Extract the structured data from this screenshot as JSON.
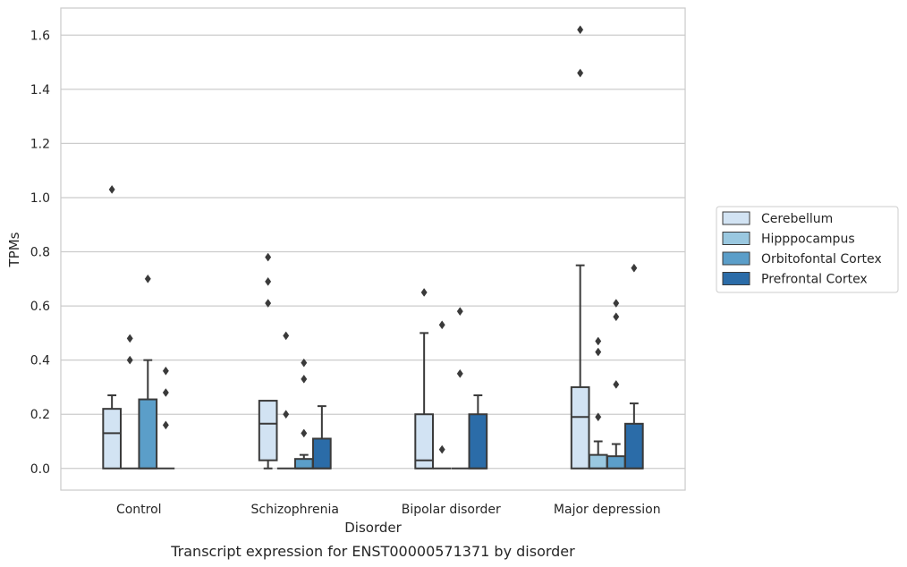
{
  "chart_data": {
    "type": "box",
    "title": "",
    "caption": "Transcript expression for ENST00000571371 by disorder",
    "xlabel": "Disorder",
    "ylabel": "TPMs",
    "ylim": [
      -0.08,
      1.7
    ],
    "yticks": [
      0.0,
      0.2,
      0.4,
      0.6,
      0.8,
      1.0,
      1.2,
      1.4,
      1.6
    ],
    "ytick_labels": [
      "0.0",
      "0.2",
      "0.4",
      "0.6",
      "0.8",
      "1.0",
      "1.2",
      "1.4",
      "1.6"
    ],
    "grid": "horizontal",
    "legend_position": "right",
    "categories": [
      "Control",
      "Schizophrenia",
      "Bipolar disorder",
      "Major depression"
    ],
    "series": [
      {
        "name": "Cerebellum",
        "color": "#d2e3f3",
        "boxes": [
          {
            "q1": 0.0,
            "median": 0.13,
            "q3": 0.22,
            "whisker_low": 0.0,
            "whisker_high": 0.27,
            "outliers": [
              1.03
            ]
          },
          {
            "q1": 0.03,
            "median": 0.165,
            "q3": 0.25,
            "whisker_low": 0.0,
            "whisker_high": 0.25,
            "outliers": [
              0.78,
              0.69,
              0.61
            ]
          },
          {
            "q1": 0.0,
            "median": 0.03,
            "q3": 0.2,
            "whisker_low": 0.0,
            "whisker_high": 0.5,
            "outliers": [
              0.65
            ]
          },
          {
            "q1": 0.0,
            "median": 0.19,
            "q3": 0.3,
            "whisker_low": 0.0,
            "whisker_high": 0.75,
            "outliers": [
              1.62,
              1.46
            ]
          }
        ]
      },
      {
        "name": "Hipppocampus",
        "color": "#9ac8e0",
        "boxes": [
          {
            "q1": 0.0,
            "median": 0.0,
            "q3": 0.0,
            "whisker_low": 0.0,
            "whisker_high": 0.0,
            "outliers": [
              0.48,
              0.4
            ]
          },
          {
            "q1": 0.0,
            "median": 0.0,
            "q3": 0.0,
            "whisker_low": 0.0,
            "whisker_high": 0.0,
            "outliers": [
              0.49,
              0.2
            ]
          },
          {
            "q1": 0.0,
            "median": 0.0,
            "q3": 0.0,
            "whisker_low": 0.0,
            "whisker_high": 0.0,
            "outliers": [
              0.53,
              0.07
            ]
          },
          {
            "q1": 0.0,
            "median": 0.0,
            "q3": 0.05,
            "whisker_low": 0.0,
            "whisker_high": 0.1,
            "outliers": [
              0.47,
              0.43,
              0.19
            ]
          }
        ]
      },
      {
        "name": "Orbitofontal Cortex",
        "color": "#5b9ec9",
        "boxes": [
          {
            "q1": 0.0,
            "median": 0.0,
            "q3": 0.255,
            "whisker_low": 0.0,
            "whisker_high": 0.4,
            "outliers": [
              0.7
            ]
          },
          {
            "q1": 0.0,
            "median": 0.0,
            "q3": 0.035,
            "whisker_low": 0.0,
            "whisker_high": 0.05,
            "outliers": [
              0.39,
              0.33,
              0.13
            ]
          },
          {
            "q1": 0.0,
            "median": 0.0,
            "q3": 0.0,
            "whisker_low": 0.0,
            "whisker_high": 0.0,
            "outliers": [
              0.58,
              0.35
            ]
          },
          {
            "q1": 0.0,
            "median": 0.0,
            "q3": 0.045,
            "whisker_low": 0.0,
            "whisker_high": 0.09,
            "outliers": [
              0.61,
              0.56,
              0.31
            ]
          }
        ]
      },
      {
        "name": "Prefrontal Cortex",
        "color": "#2b6ca8",
        "boxes": [
          {
            "q1": 0.0,
            "median": 0.0,
            "q3": 0.0,
            "whisker_low": 0.0,
            "whisker_high": 0.0,
            "outliers": [
              0.36,
              0.28,
              0.16
            ]
          },
          {
            "q1": 0.0,
            "median": 0.0,
            "q3": 0.11,
            "whisker_low": 0.0,
            "whisker_high": 0.23,
            "outliers": []
          },
          {
            "q1": 0.0,
            "median": 0.0,
            "q3": 0.2,
            "whisker_low": 0.0,
            "whisker_high": 0.27,
            "outliers": []
          },
          {
            "q1": 0.0,
            "median": 0.0,
            "q3": 0.165,
            "whisker_low": 0.0,
            "whisker_high": 0.24,
            "outliers": [
              0.74
            ]
          }
        ]
      }
    ]
  }
}
